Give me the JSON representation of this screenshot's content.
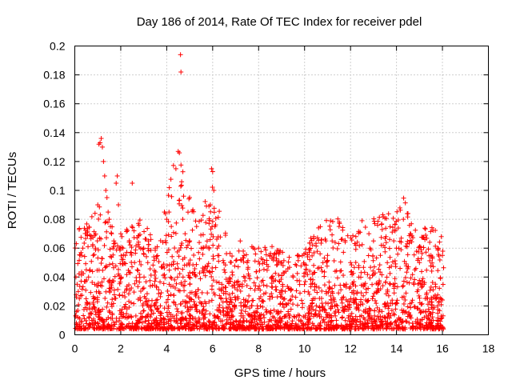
{
  "chart_data": {
    "type": "scatter",
    "title": "Day 186 of 2014, Rate Of TEC Index for receiver pdel",
    "xlabel": "GPS time / hours",
    "ylabel": "ROTI / TECUs",
    "xlim": [
      0,
      18
    ],
    "ylim": [
      0,
      0.2
    ],
    "xticks": [
      0,
      2,
      4,
      6,
      8,
      10,
      12,
      14,
      16,
      18
    ],
    "yticks": [
      0,
      0.02,
      0.04,
      0.06,
      0.08,
      0.1,
      0.12,
      0.14,
      0.16,
      0.18,
      0.2
    ],
    "xtick_labels": [
      "0",
      "2",
      "4",
      "6",
      "8",
      "10",
      "12",
      "14",
      "16",
      "18"
    ],
    "ytick_labels": [
      "0",
      "0.02",
      "0.04",
      "0.06",
      "0.08",
      "0.1",
      "0.12",
      "0.14",
      "0.16",
      "0.18",
      "0.2"
    ],
    "grid": true,
    "marker": "+",
    "color": "#ff0000",
    "x_data_range": [
      0,
      16.05
    ],
    "series": [
      {
        "name": "ROTI",
        "points": [
          [
            0.05,
            0.04
          ],
          [
            0.1,
            0.035
          ],
          [
            0.15,
            0.03
          ],
          [
            0.2,
            0.025
          ],
          [
            0.3,
            0.055
          ],
          [
            0.35,
            0.06
          ],
          [
            0.5,
            0.045
          ],
          [
            0.6,
            0.04
          ],
          [
            0.8,
            0.055
          ],
          [
            0.9,
            0.06
          ],
          [
            1.0,
            0.09
          ],
          [
            1.05,
            0.132
          ],
          [
            1.1,
            0.133
          ],
          [
            1.15,
            0.136
          ],
          [
            1.2,
            0.13
          ],
          [
            1.25,
            0.12
          ],
          [
            1.3,
            0.11
          ],
          [
            1.35,
            0.1
          ],
          [
            1.4,
            0.095
          ],
          [
            1.45,
            0.085
          ],
          [
            1.5,
            0.08
          ],
          [
            1.55,
            0.075
          ],
          [
            1.6,
            0.07
          ],
          [
            1.7,
            0.065
          ],
          [
            1.8,
            0.105
          ],
          [
            1.85,
            0.11
          ],
          [
            1.9,
            0.09
          ],
          [
            2.0,
            0.07
          ],
          [
            2.1,
            0.06
          ],
          [
            2.2,
            0.055
          ],
          [
            2.5,
            0.105
          ],
          [
            2.6,
            0.05
          ],
          [
            3.0,
            0.06
          ],
          [
            3.2,
            0.065
          ],
          [
            3.5,
            0.06
          ],
          [
            3.9,
            0.085
          ],
          [
            4.0,
            0.08
          ],
          [
            4.1,
            0.085
          ],
          [
            4.2,
            0.075
          ],
          [
            4.4,
            0.115
          ],
          [
            4.5,
            0.127
          ],
          [
            4.55,
            0.126
          ],
          [
            4.6,
            0.194
          ],
          [
            4.62,
            0.182
          ],
          [
            4.65,
            0.106
          ],
          [
            4.7,
            0.08
          ],
          [
            4.8,
            0.07
          ],
          [
            5.0,
            0.065
          ],
          [
            5.3,
            0.075
          ],
          [
            5.5,
            0.06
          ],
          [
            5.9,
            0.09
          ],
          [
            5.95,
            0.115
          ],
          [
            6.0,
            0.113
          ],
          [
            6.05,
            0.1
          ],
          [
            6.1,
            0.075
          ],
          [
            6.2,
            0.06
          ],
          [
            6.5,
            0.045
          ],
          [
            7.2,
            0.065
          ],
          [
            7.5,
            0.05
          ],
          [
            8.0,
            0.06
          ],
          [
            8.5,
            0.055
          ],
          [
            9.0,
            0.05
          ],
          [
            9.5,
            0.04
          ],
          [
            10.0,
            0.03
          ],
          [
            10.4,
            0.068
          ],
          [
            10.8,
            0.05
          ],
          [
            11.0,
            0.055
          ],
          [
            11.2,
            0.065
          ],
          [
            11.5,
            0.075
          ],
          [
            12.0,
            0.05
          ],
          [
            12.5,
            0.079
          ],
          [
            12.8,
            0.07
          ],
          [
            13.0,
            0.065
          ],
          [
            13.3,
            0.055
          ],
          [
            13.6,
            0.05
          ],
          [
            14.0,
            0.06
          ],
          [
            14.3,
            0.08
          ],
          [
            14.5,
            0.084
          ],
          [
            14.6,
            0.07
          ],
          [
            14.8,
            0.045
          ],
          [
            15.0,
            0.05
          ],
          [
            15.2,
            0.035
          ],
          [
            15.5,
            0.055
          ],
          [
            15.8,
            0.06
          ],
          [
            15.95,
            0.068
          ],
          [
            16.0,
            0.055
          ]
        ]
      }
    ]
  }
}
